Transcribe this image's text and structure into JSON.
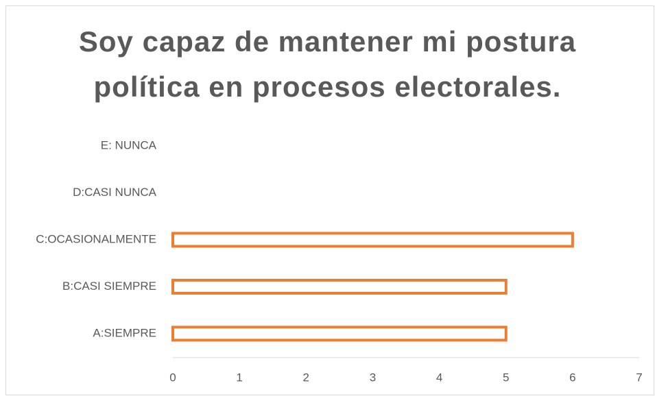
{
  "chart_data": {
    "type": "bar",
    "orientation": "horizontal",
    "title": "Soy capaz de mantener mi postura política en procesos electorales.",
    "categories": [
      "A:SIEMPRE",
      "B:CASI SIEMPRE",
      "C:OCASIONALMENTE",
      "D:CASI NUNCA",
      "E: NUNCA"
    ],
    "values": [
      5,
      5,
      6,
      0,
      0
    ],
    "color": "#ed7d31",
    "xlim": [
      0,
      7
    ],
    "xticks": [
      0,
      1,
      2,
      3,
      4,
      5,
      6,
      7
    ],
    "grid": false
  }
}
